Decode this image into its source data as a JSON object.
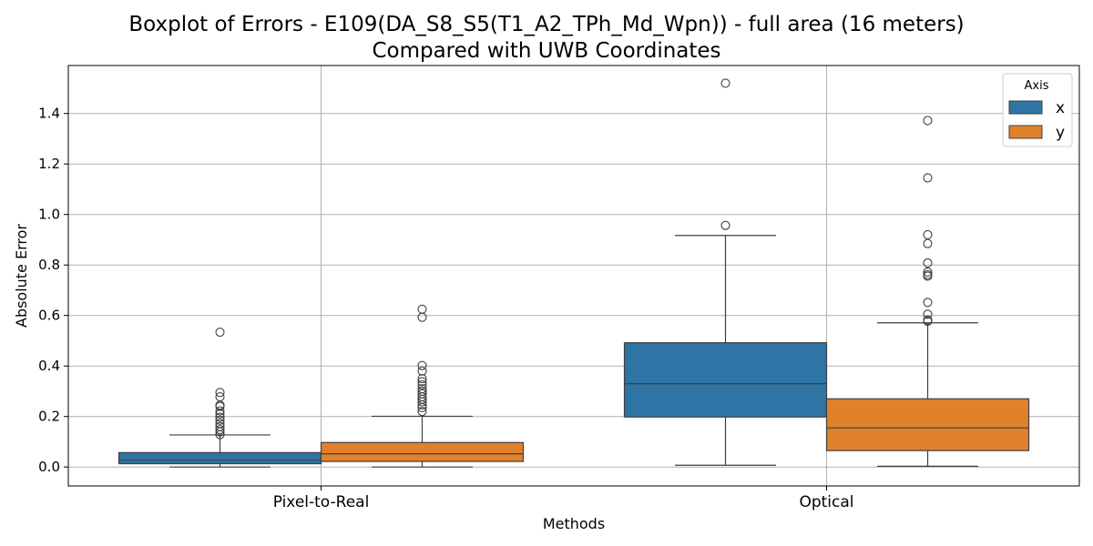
{
  "chart_data": {
    "type": "boxplot",
    "title_line1": "Boxplot of Errors - E109(DA_S8_S5(T1_A2_TPh_Md_Wpn)) - full area (16 meters)",
    "title_line2": "Compared with UWB Coordinates",
    "xlabel": "Methods",
    "ylabel": "Absolute Error",
    "ylim": [
      -0.075,
      1.59
    ],
    "yticks": [
      0.0,
      0.2,
      0.4,
      0.6,
      0.8,
      1.0,
      1.2,
      1.4
    ],
    "ytick_labels": [
      "0.0",
      "0.2",
      "0.4",
      "0.6",
      "0.8",
      "1.0",
      "1.2",
      "1.4"
    ],
    "categories": [
      "Pixel-to-Real",
      "Optical"
    ],
    "grid": true,
    "legend": {
      "title": "Axis",
      "placement": "top-right"
    },
    "series": [
      {
        "name": "x",
        "color": "#2e74a4",
        "boxes": [
          {
            "whisker_low": 0.0,
            "q1": 0.013,
            "median": 0.027,
            "q3": 0.057,
            "whisker_high": 0.127,
            "outliers": [
              0.534,
              0.295,
              0.278,
              0.245,
              0.24,
              0.222,
              0.21,
              0.197,
              0.185,
              0.172,
              0.16,
              0.148,
              0.139,
              0.128
            ]
          },
          {
            "whisker_low": 0.007,
            "q1": 0.198,
            "median": 0.33,
            "q3": 0.492,
            "whisker_high": 0.917,
            "outliers": [
              1.52,
              0.957
            ]
          }
        ]
      },
      {
        "name": "y",
        "color": "#e1812c",
        "boxes": [
          {
            "whisker_low": 0.0,
            "q1": 0.022,
            "median": 0.052,
            "q3": 0.097,
            "whisker_high": 0.201,
            "outliers": [
              0.625,
              0.593,
              0.402,
              0.38,
              0.35,
              0.338,
              0.325,
              0.31,
              0.3,
              0.29,
              0.278,
              0.268,
              0.258,
              0.246,
              0.235,
              0.22
            ]
          },
          {
            "whisker_low": 0.003,
            "q1": 0.065,
            "median": 0.155,
            "q3": 0.27,
            "whisker_high": 0.571,
            "outliers": [
              1.372,
              1.145,
              0.92,
              0.885,
              0.808,
              0.772,
              0.762,
              0.756,
              0.652,
              0.605,
              0.582,
              0.577
            ]
          }
        ]
      }
    ]
  }
}
